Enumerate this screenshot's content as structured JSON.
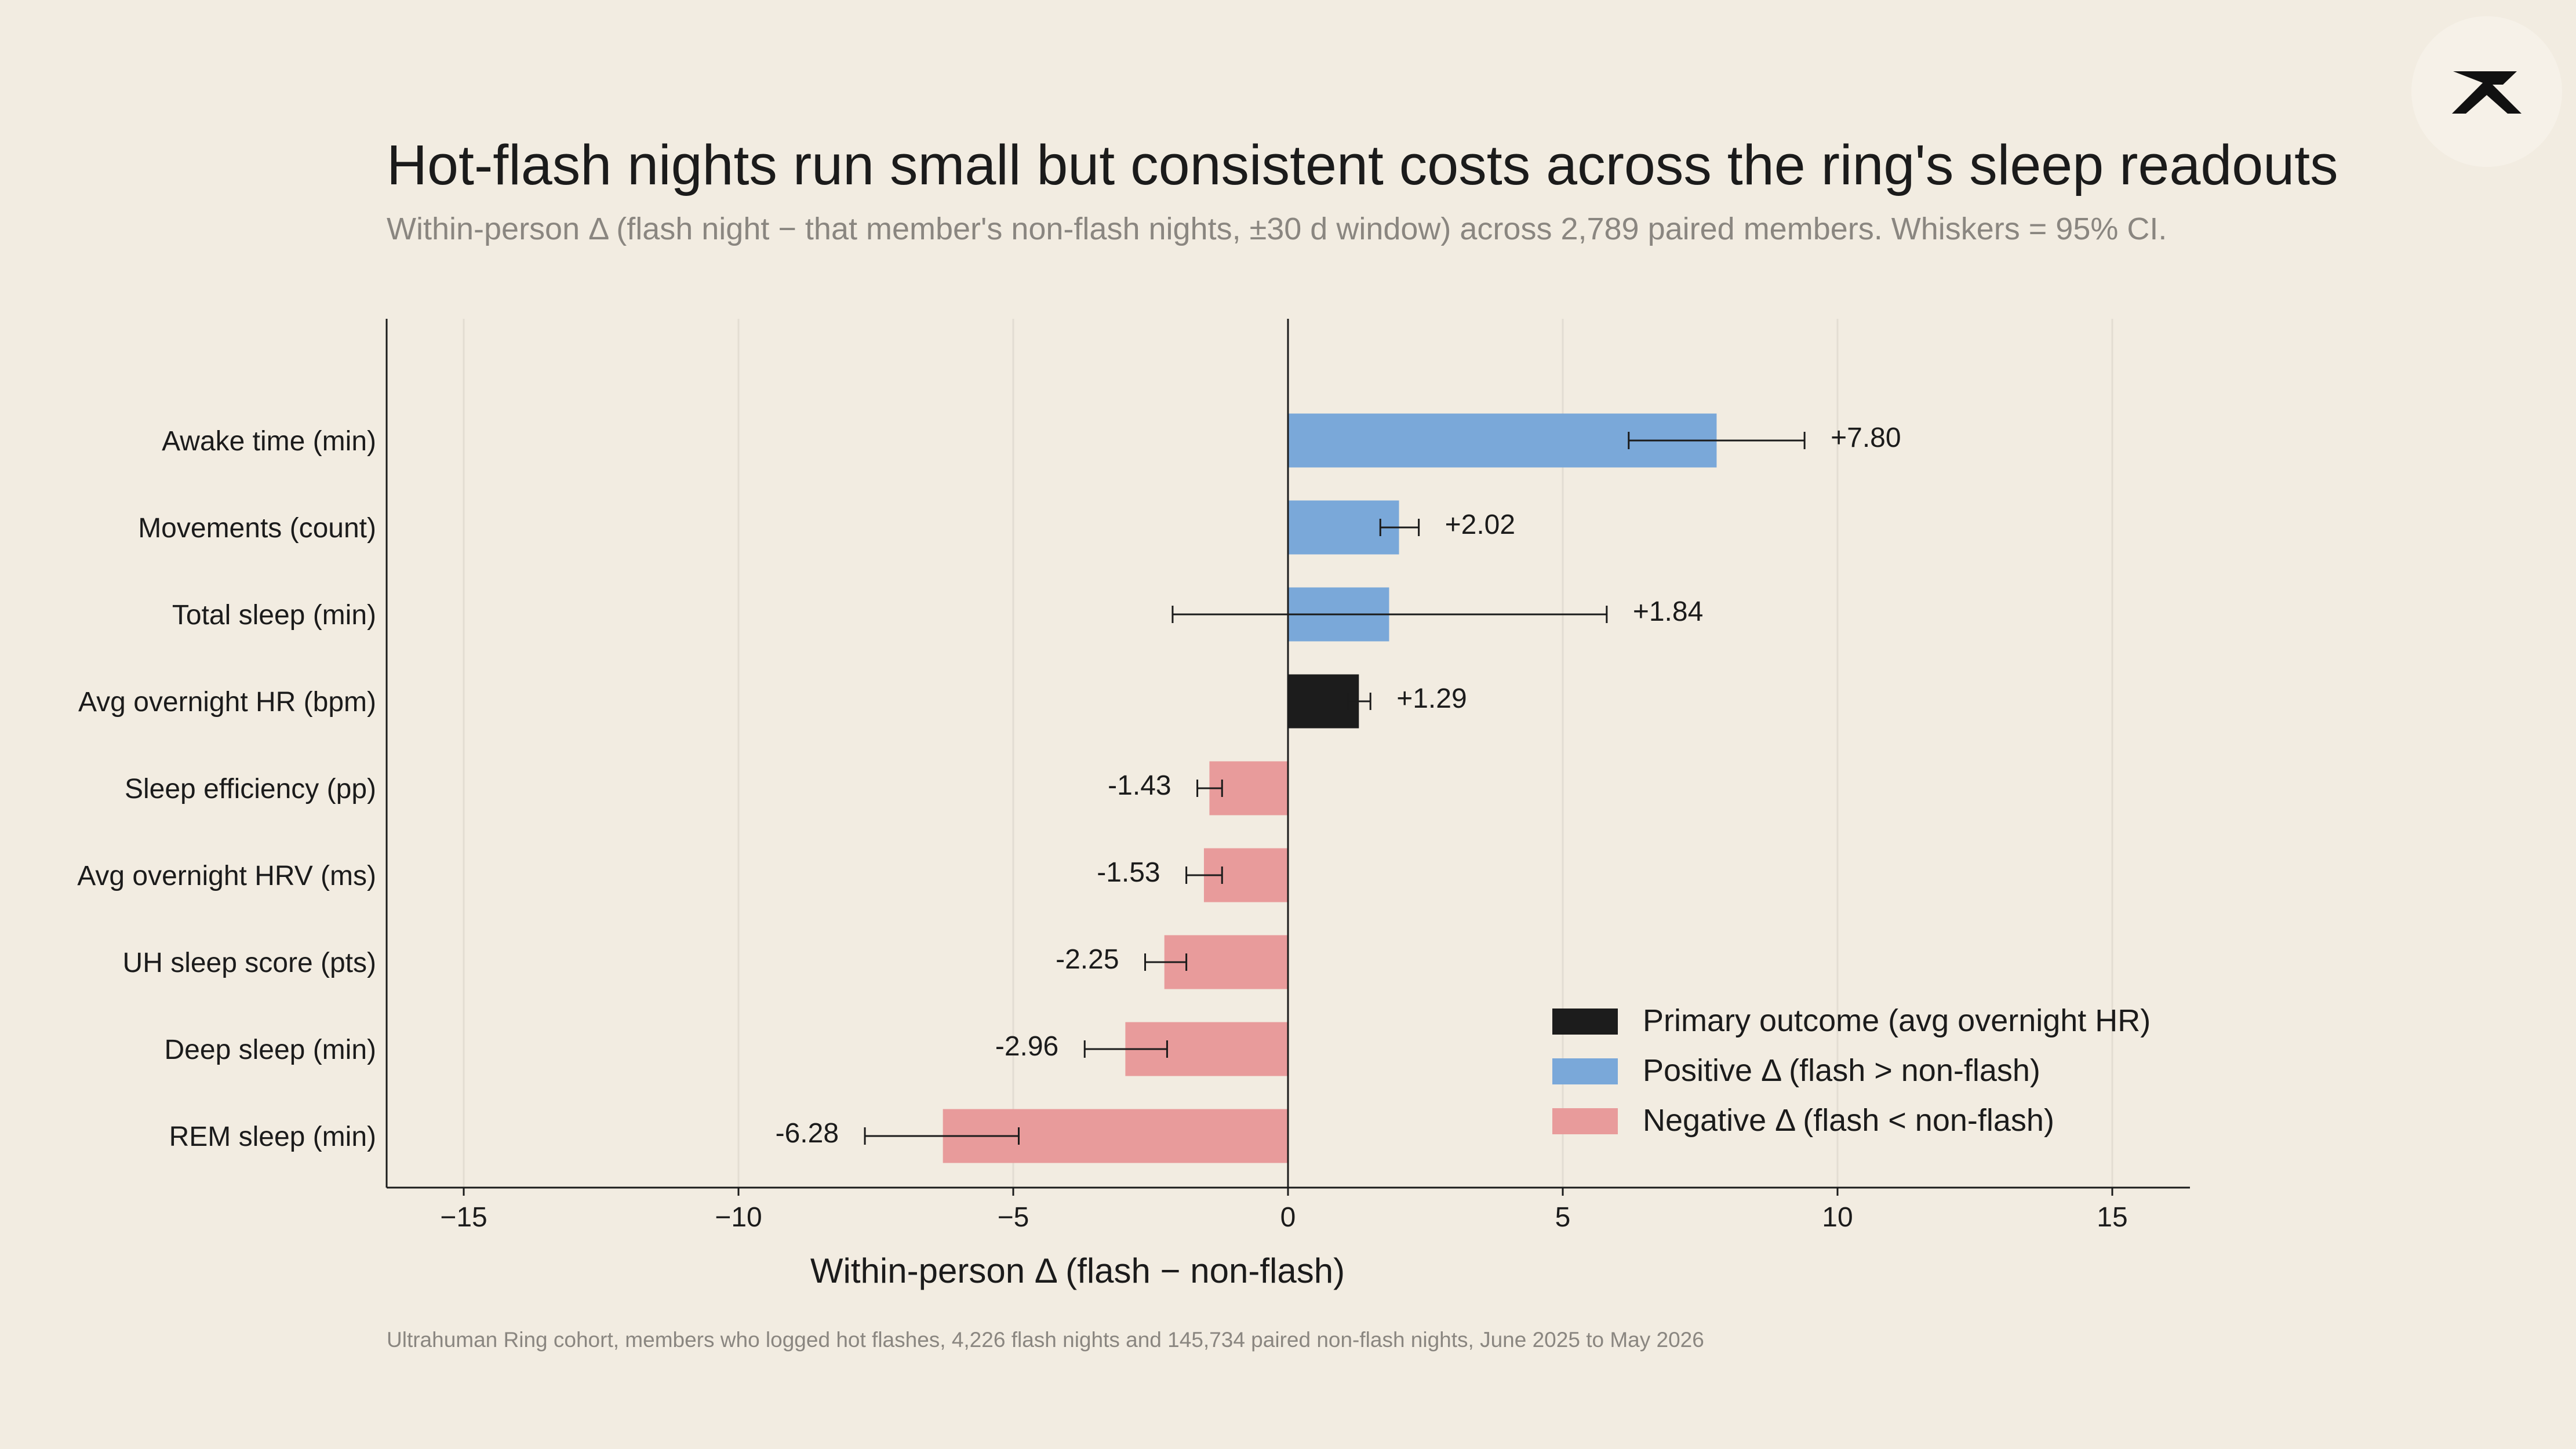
{
  "chart_data": {
    "type": "bar",
    "orientation": "horizontal",
    "title": "Hot-flash nights run small but consistent costs across the ring's sleep readouts",
    "subtitle": "Within-person Δ (flash night − that member's non-flash nights, ±30 d window) across 2,789 paired members. Whiskers = 95% CI.",
    "xlabel": "Within-person Δ (flash − non-flash)",
    "ylabel": "",
    "xlim": [
      -16.5,
      16.5
    ],
    "xticks": [
      -15,
      -10,
      -5,
      0,
      5,
      10,
      15
    ],
    "xtick_labels": [
      "−15",
      "−10",
      "−5",
      "0",
      "5",
      "10",
      "15"
    ],
    "grid": "vertical",
    "legend_position": "bottom-right",
    "categories": [
      "Awake time (min)",
      "Movements (count)",
      "Total sleep (min)",
      "Avg overnight HR (bpm)",
      "Sleep efficiency (pp)",
      "Avg overnight HRV (ms)",
      "UH sleep score (pts)",
      "Deep sleep (min)",
      "REM sleep (min)"
    ],
    "values": [
      7.8,
      2.02,
      1.84,
      1.29,
      -1.43,
      -1.53,
      -2.25,
      -2.96,
      -6.28
    ],
    "value_labels": [
      "+7.80",
      "+2.02",
      "+1.84",
      "+1.29",
      "-1.43",
      "-1.53",
      "-2.25",
      "-2.96",
      "-6.28"
    ],
    "ci_low": [
      6.2,
      1.68,
      -2.1,
      1.1,
      -1.65,
      -1.85,
      -2.6,
      -3.7,
      -7.7
    ],
    "ci_high": [
      9.4,
      2.38,
      5.8,
      1.5,
      -1.2,
      -1.2,
      -1.85,
      -2.2,
      -4.9
    ],
    "groups": [
      "positive",
      "positive",
      "positive",
      "primary",
      "negative",
      "negative",
      "negative",
      "negative",
      "negative"
    ],
    "legend": [
      {
        "key": "primary",
        "label": "Primary outcome (avg overnight HR)"
      },
      {
        "key": "positive",
        "label": "Positive Δ (flash > non-flash)"
      },
      {
        "key": "negative",
        "label": "Negative Δ (flash < non-flash)"
      }
    ],
    "colors": {
      "primary": "#1c1c1c",
      "positive": "#7aa8d9",
      "negative": "#e89b9b",
      "background": "#f2ece1",
      "grid": "#e3ddd2",
      "text": "#1b1b1b",
      "muted": "#8a8680"
    },
    "footnote": "Ultrahuman Ring cohort, members who logged hot flashes, 4,226 flash nights and 145,734 paired non-flash nights, June 2025 to May 2026"
  },
  "logo": {
    "icon": "ultrahuman-logo-icon"
  }
}
